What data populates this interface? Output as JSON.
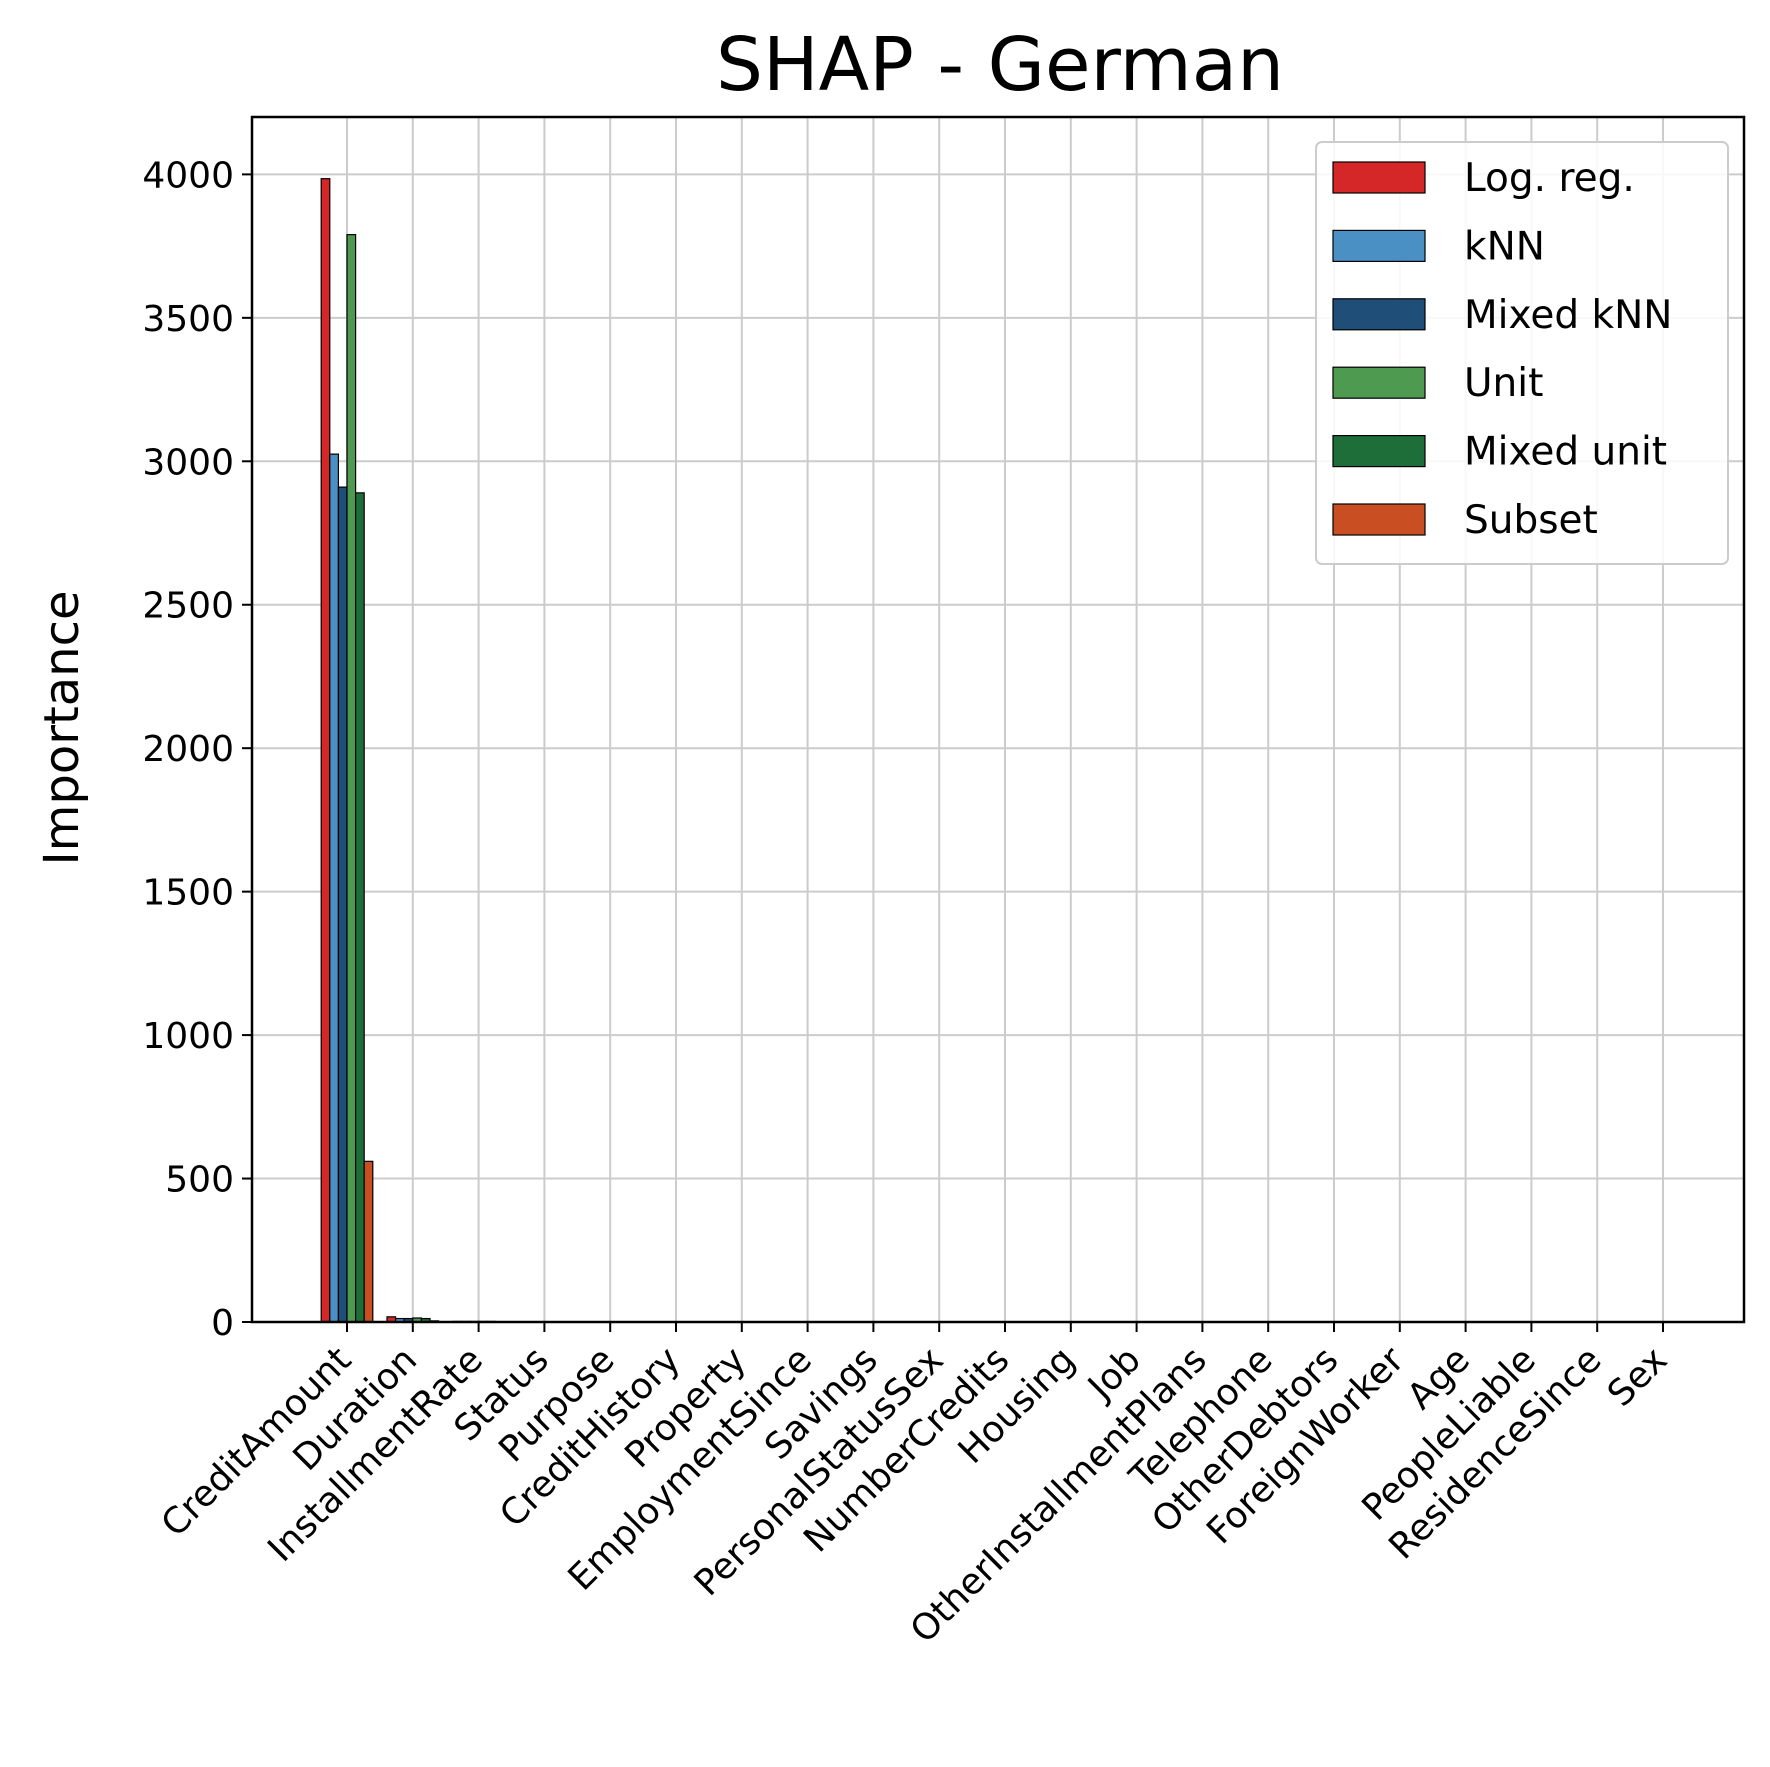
{
  "chart_data": {
    "type": "bar",
    "title": "SHAP - German",
    "xlabel": "",
    "ylabel": "Importance",
    "ylim": [
      0,
      4200
    ],
    "yticks": [
      0,
      500,
      1000,
      1500,
      2000,
      2500,
      3000,
      3500,
      4000
    ],
    "grid": true,
    "legend_position": "top-right",
    "categories": [
      "CreditAmount",
      "Duration",
      "InstallmentRate",
      "Status",
      "Purpose",
      "CreditHistory",
      "Property",
      "EmploymentSince",
      "Savings",
      "PersonalStatusSex",
      "NumberCredits",
      "Housing",
      "Job",
      "OtherInstallmentPlans",
      "Telephone",
      "OtherDebtors",
      "ForeignWorker",
      "Age",
      "PeopleLiable",
      "ResidenceSince",
      "Sex"
    ],
    "series": [
      {
        "name": "Log. reg.",
        "color": "#d62728",
        "values": [
          3985,
          18,
          2,
          1,
          1,
          1,
          1,
          1,
          1,
          1,
          1,
          1,
          1,
          1,
          1,
          1,
          1,
          1,
          1,
          1,
          1
        ]
      },
      {
        "name": "kNN",
        "color": "#4a90c4",
        "values": [
          3025,
          12,
          2,
          1,
          1,
          1,
          1,
          1,
          1,
          1,
          1,
          1,
          1,
          1,
          1,
          1,
          1,
          1,
          1,
          1,
          1
        ]
      },
      {
        "name": "Mixed kNN",
        "color": "#1f4e79",
        "values": [
          2910,
          12,
          2,
          1,
          1,
          1,
          1,
          1,
          1,
          1,
          1,
          1,
          1,
          1,
          1,
          1,
          1,
          1,
          1,
          1,
          1
        ]
      },
      {
        "name": "Unit",
        "color": "#4e9a51",
        "values": [
          3790,
          14,
          2,
          1,
          1,
          1,
          1,
          1,
          1,
          1,
          1,
          1,
          1,
          1,
          1,
          1,
          1,
          1,
          1,
          1,
          1
        ]
      },
      {
        "name": "Mixed unit",
        "color": "#1e6e3a",
        "values": [
          2890,
          12,
          2,
          1,
          1,
          1,
          1,
          1,
          1,
          1,
          1,
          1,
          1,
          1,
          1,
          1,
          1,
          1,
          1,
          1,
          1
        ]
      },
      {
        "name": "Subset",
        "color": "#c94f23",
        "values": [
          560,
          4,
          1,
          1,
          1,
          1,
          1,
          1,
          1,
          1,
          1,
          1,
          1,
          1,
          1,
          1,
          1,
          1,
          1,
          1,
          1
        ]
      }
    ]
  }
}
